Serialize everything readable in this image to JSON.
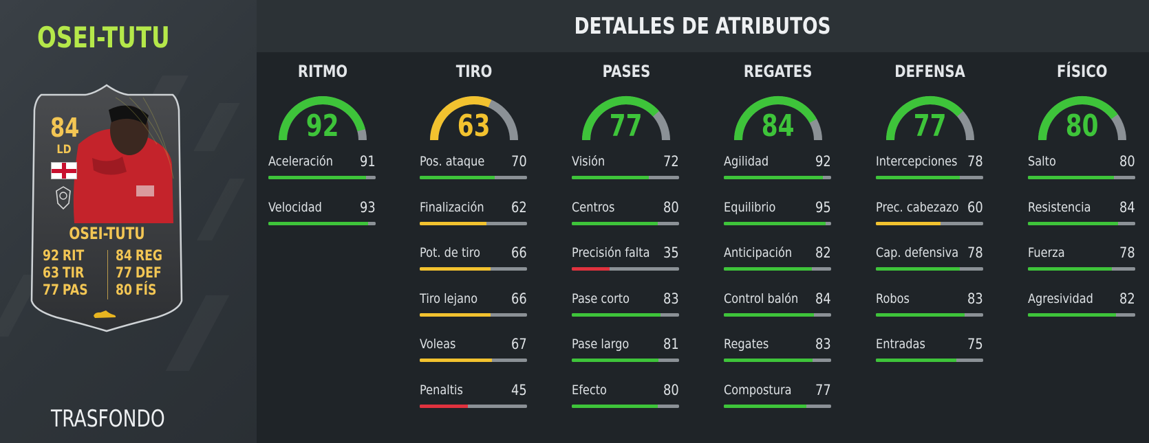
{
  "left": {
    "player_name": "OSEI-TUTU",
    "version": "TRASFONDO"
  },
  "card": {
    "rating": "84",
    "position": "LD",
    "name": "OSEI-TUTU",
    "stats": [
      {
        "value": "92",
        "label": "RIT"
      },
      {
        "value": "63",
        "label": "TIR"
      },
      {
        "value": "77",
        "label": "PAS"
      },
      {
        "value": "84",
        "label": "REG"
      },
      {
        "value": "77",
        "label": "DEF"
      },
      {
        "value": "80",
        "label": "FÍS"
      }
    ],
    "colors": {
      "text": "#f3c654",
      "background": "#3b3d40"
    }
  },
  "main": {
    "title": "DETALLES DE ATRIBUTOS",
    "colors": {
      "high": "#3ec43a",
      "mid": "#f2c22f",
      "low": "#e0323e",
      "track": "#8b9196"
    },
    "categories": [
      {
        "name": "RITMO",
        "value": 92,
        "attributes": [
          {
            "label": "Aceleración",
            "value": 91
          },
          {
            "label": "Velocidad",
            "value": 93
          }
        ]
      },
      {
        "name": "TIRO",
        "value": 63,
        "attributes": [
          {
            "label": "Pos. ataque",
            "value": 70
          },
          {
            "label": "Finalización",
            "value": 62
          },
          {
            "label": "Pot. de tiro",
            "value": 66
          },
          {
            "label": "Tiro lejano",
            "value": 66
          },
          {
            "label": "Voleas",
            "value": 67
          },
          {
            "label": "Penaltis",
            "value": 45
          }
        ]
      },
      {
        "name": "PASES",
        "value": 77,
        "attributes": [
          {
            "label": "Visión",
            "value": 72
          },
          {
            "label": "Centros",
            "value": 80
          },
          {
            "label": "Precisión falta",
            "value": 35
          },
          {
            "label": "Pase corto",
            "value": 83
          },
          {
            "label": "Pase largo",
            "value": 81
          },
          {
            "label": "Efecto",
            "value": 80
          }
        ]
      },
      {
        "name": "REGATES",
        "value": 84,
        "attributes": [
          {
            "label": "Agilidad",
            "value": 92
          },
          {
            "label": "Equilibrio",
            "value": 95
          },
          {
            "label": "Anticipación",
            "value": 82
          },
          {
            "label": "Control balón",
            "value": 84
          },
          {
            "label": "Regates",
            "value": 83
          },
          {
            "label": "Compostura",
            "value": 77
          }
        ]
      },
      {
        "name": "DEFENSA",
        "value": 77,
        "attributes": [
          {
            "label": "Intercepciones",
            "value": 78
          },
          {
            "label": "Prec. cabezazo",
            "value": 60
          },
          {
            "label": "Cap. defensiva",
            "value": 78
          },
          {
            "label": "Robos",
            "value": 83
          },
          {
            "label": "Entradas",
            "value": 75
          }
        ]
      },
      {
        "name": "FÍSICO",
        "value": 80,
        "attributes": [
          {
            "label": "Salto",
            "value": 80
          },
          {
            "label": "Resistencia",
            "value": 84
          },
          {
            "label": "Fuerza",
            "value": 78
          },
          {
            "label": "Agresividad",
            "value": 82
          }
        ]
      }
    ]
  }
}
